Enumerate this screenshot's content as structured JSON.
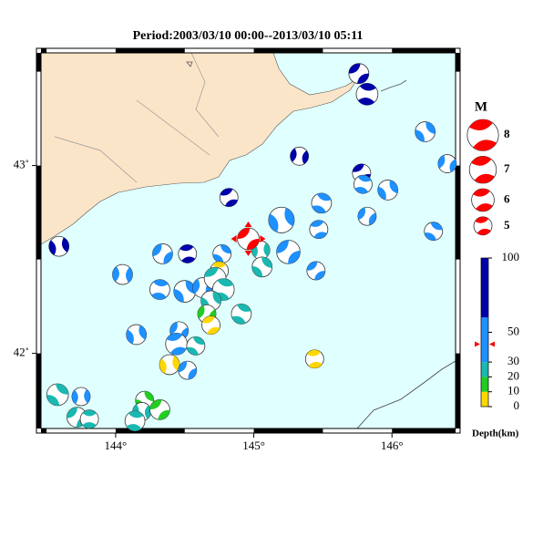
{
  "chart_data": {
    "type": "focal-map",
    "title": "Period:2003/03/10 00:00--2013/03/10 05:11",
    "xlim": [
      143.46,
      146.46
    ],
    "ylim": [
      41.6,
      43.6
    ],
    "xticks": [
      {
        "value": 144,
        "label": "144°"
      },
      {
        "value": 145,
        "label": "145°"
      },
      {
        "value": 146,
        "label": "146°"
      }
    ],
    "yticks": [
      {
        "value": 42,
        "label": "42˚"
      },
      {
        "value": 43,
        "label": "43˚"
      }
    ],
    "land_color": "#fbe5c8",
    "sea_color": "#e0ffff",
    "main_color": "#ff0000",
    "events": {
      "lon": [
        145.76,
        145.82,
        146.24,
        145.33,
        145.78,
        145.79,
        145.97,
        146.4,
        144.82,
        145.49,
        145.2,
        145.82,
        145.47,
        146.3,
        143.59,
        144.34,
        144.52,
        144.77,
        145.05,
        145.25,
        144.75,
        145.06,
        144.05,
        145.45,
        144.32,
        144.5,
        144.63,
        144.72,
        144.78,
        144.69,
        144.66,
        144.69,
        144.91,
        144.15,
        144.46,
        144.44,
        144.58,
        144.39,
        144.52,
        145.44,
        143.58,
        143.75,
        143.72,
        143.81,
        144.21,
        144.19,
        144.32,
        144.14
      ],
      "lat": [
        43.49,
        43.38,
        43.18,
        43.05,
        42.96,
        42.9,
        42.87,
        43.01,
        42.83,
        42.8,
        42.71,
        42.73,
        42.66,
        42.65,
        42.57,
        42.53,
        42.53,
        42.53,
        42.55,
        42.54,
        42.44,
        42.46,
        42.42,
        42.44,
        42.34,
        42.33,
        42.35,
        42.4,
        42.34,
        42.28,
        42.21,
        42.15,
        42.21,
        42.1,
        42.12,
        42.05,
        42.04,
        41.94,
        41.91,
        41.97,
        41.78,
        41.77,
        41.66,
        41.65,
        41.75,
        41.69,
        41.7,
        41.64
      ],
      "depth": [
        70,
        70,
        45,
        70,
        70,
        45,
        45,
        45,
        70,
        45,
        45,
        45,
        45,
        45,
        70,
        45,
        70,
        45,
        25,
        45,
        5,
        25,
        45,
        45,
        45,
        45,
        45,
        25,
        25,
        25,
        15,
        5,
        25,
        45,
        45,
        45,
        25,
        5,
        45,
        5,
        25,
        45,
        25,
        25,
        15,
        25,
        15,
        25
      ],
      "magnitude": [
        5.4,
        5.8,
        5.4,
        5.0,
        5.0,
        5.0,
        5.4,
        5.0,
        5.0,
        5.4,
        6.7,
        5.0,
        5.0,
        5.0,
        5.4,
        5.4,
        5.0,
        5.0,
        5.0,
        6.2,
        5.0,
        5.4,
        5.4,
        5.0,
        5.4,
        5.8,
        5.4,
        5.8,
        5.8,
        5.4,
        5.0,
        5.0,
        5.4,
        5.4,
        5.0,
        5.8,
        5.0,
        5.4,
        5.0,
        5.0,
        5.8,
        5.0,
        5.4,
        5.0,
        5.0,
        5.0,
        5.4,
        5.4
      ]
    },
    "main_event": {
      "lon": 144.96,
      "lat": 42.61,
      "depth": 42,
      "magnitude": 5.8
    },
    "magnitude_legend": {
      "title": "M",
      "values": [
        8,
        7,
        6,
        5
      ]
    },
    "depth_scale": {
      "label": "Depth(km)",
      "ylim": [
        0,
        100
      ],
      "yticks": [
        0,
        10,
        20,
        30,
        50,
        100
      ],
      "bands": [
        {
          "from": 0,
          "to": 10,
          "color": "#ffd700"
        },
        {
          "from": 10,
          "to": 20,
          "color": "#22cc22"
        },
        {
          "from": 20,
          "to": 30,
          "color": "#1ab8b0"
        },
        {
          "from": 30,
          "to": 60,
          "color": "#1e90ff"
        },
        {
          "from": 60,
          "to": 100,
          "color": "#0000aa"
        }
      ]
    }
  }
}
